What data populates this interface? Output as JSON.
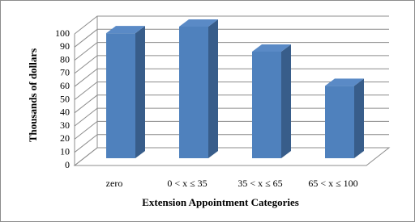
{
  "chart_data": {
    "type": "bar3d",
    "y_label": "Thousands of dollars",
    "x_label": "Extension Appointment Categories",
    "categories": [
      "zero",
      "0 < x ≤ 35",
      "35 < x ≤ 65",
      "65 < x ≤ 100"
    ],
    "values": [
      95,
      100,
      81,
      55
    ],
    "color": "#4f81bd",
    "ylim": [
      0,
      100
    ],
    "yticks": [
      0,
      10,
      20,
      30,
      40,
      50,
      60,
      70,
      80,
      90,
      100
    ],
    "grid": true
  }
}
